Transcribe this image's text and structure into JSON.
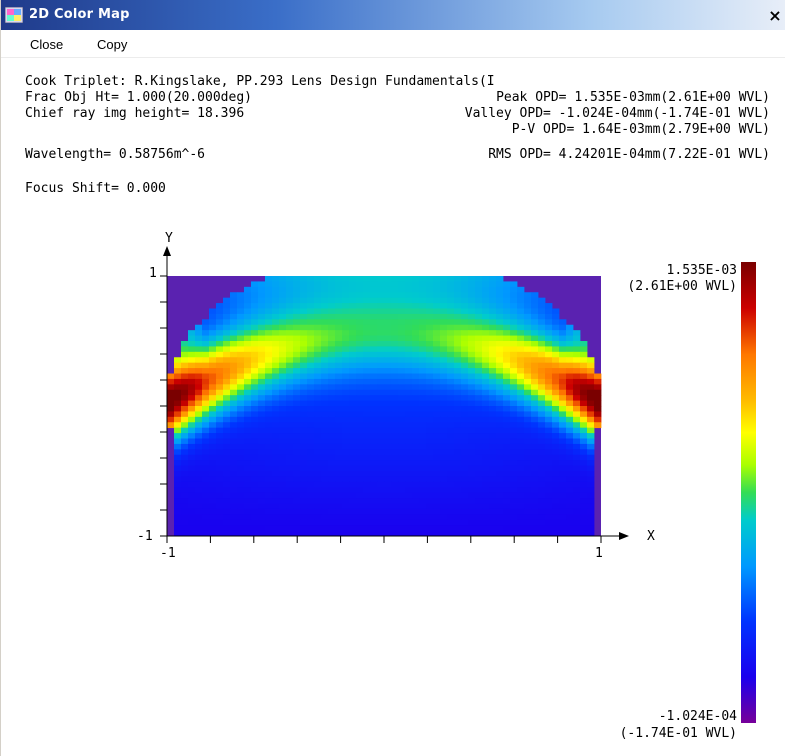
{
  "window": {
    "title": "2D Color Map",
    "close_glyph": "×"
  },
  "menu": {
    "items": [
      "Close",
      "Copy"
    ]
  },
  "info": {
    "header": "Cook Triplet: R.Kingslake, PP.293 Lens Design Fundamentals(I",
    "frac_obj": "Frac Obj Ht= 1.000(20.000deg)",
    "chief_ray": "Chief ray img height= 18.396",
    "wavelength": "Wavelength= 0.58756m^-6",
    "focus_shift": "Focus Shift= 0.000",
    "peak_opd": "Peak OPD= 1.535E-03mm(2.61E+00 WVL)",
    "valley_opd": "Valley OPD= -1.024E-04mm(-1.74E-01 WVL)",
    "pv_opd": "P-V OPD= 1.64E-03mm(2.79E+00 WVL)",
    "rms_opd": "RMS OPD= 4.24201E-04mm(7.22E-01 WVL)"
  },
  "plot": {
    "y_axis_label": "Y",
    "x_axis_label": "X",
    "y_max_label": "1",
    "y_min_label": "-1",
    "x_min_label": "-1",
    "x_max_label": "1"
  },
  "colorbar": {
    "max_value": "1.535E-03",
    "max_wvl": "(2.61E+00 WVL)",
    "min_value": "-1.024E-04",
    "min_wvl": "(-1.74E-01 WVL)",
    "colors": [
      "#7a0000",
      "#cc0000",
      "#ff4400",
      "#ff8800",
      "#ffcc00",
      "#ffff00",
      "#aaff00",
      "#33dd44",
      "#00cccc",
      "#00aaff",
      "#0055ff",
      "#0000ff",
      "#4400cc",
      "#770099"
    ]
  },
  "chart_data": {
    "type": "heatmap",
    "title": "",
    "xlabel": "X",
    "ylabel": "Y",
    "xlim": [
      -1,
      1
    ],
    "ylim": [
      -1,
      1
    ],
    "color_range": [
      -0.0001024,
      0.001535
    ],
    "x_ticks": [
      -1,
      -0.8,
      -0.6,
      -0.4,
      -0.2,
      0,
      0.2,
      0.4,
      0.6,
      0.8,
      1
    ],
    "y_ticks": [
      -1,
      -0.8,
      -0.6,
      -0.4,
      -0.2,
      0,
      0.2,
      0.4,
      0.6,
      0.8,
      1
    ]
  }
}
